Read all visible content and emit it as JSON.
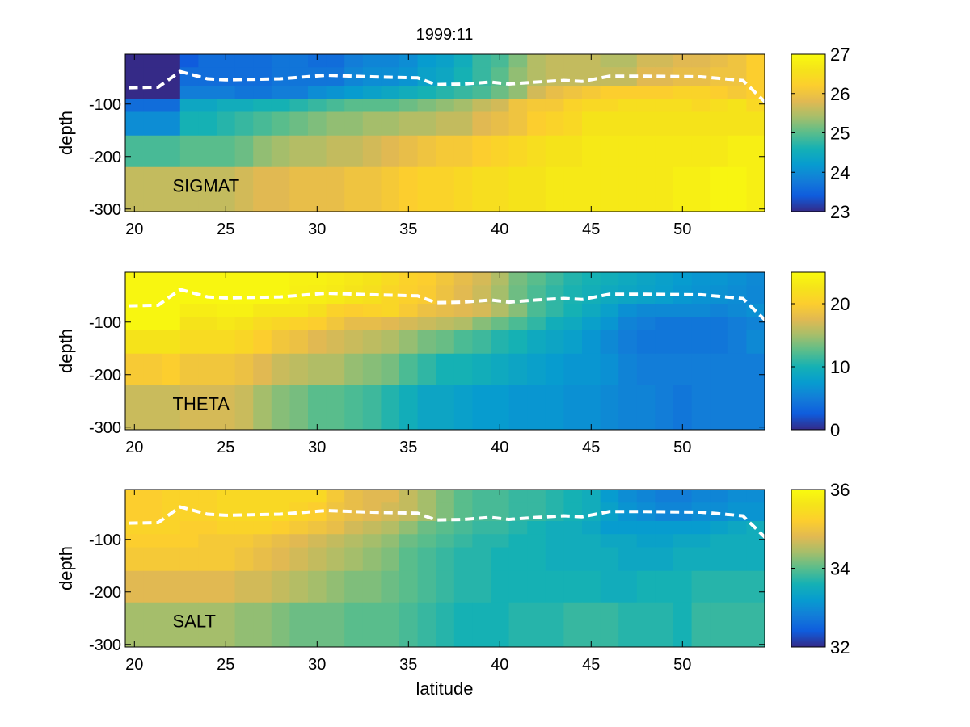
{
  "figure": {
    "title": "1999:11",
    "xlabel": "latitude",
    "colormap": "parula"
  },
  "mixed_layer_depth": {
    "style": "white dashed",
    "lat": [
      19.7,
      21.3,
      22.5,
      24.0,
      25.0,
      28.0,
      30.5,
      33.0,
      35.5,
      36.5,
      38.0,
      39.5,
      40.5,
      42.0,
      43.5,
      44.5,
      46.0,
      48.0,
      51.0,
      53.3,
      54.6
    ],
    "depth": [
      -69,
      -68,
      -38,
      -52,
      -54,
      -52,
      -45,
      -48,
      -50,
      -63,
      -62,
      -58,
      -62,
      -58,
      -55,
      -57,
      -47,
      -47,
      -48,
      -55,
      -99
    ]
  },
  "chart_data": [
    {
      "type": "heatmap",
      "label": "SIGMAT",
      "ylabel": "depth",
      "xlim": [
        19.5,
        54.5
      ],
      "ylim": [
        -305,
        -5
      ],
      "xticks": [
        20,
        25,
        30,
        35,
        40,
        45,
        50
      ],
      "yticks": [
        -100,
        -200,
        -300
      ],
      "clim": [
        23,
        27
      ],
      "colorbar_ticks": [
        23,
        24,
        25,
        26,
        27
      ],
      "lat": [
        20,
        21,
        22,
        23,
        24,
        25,
        26,
        27,
        28,
        29,
        30,
        31,
        32,
        33,
        34,
        35,
        36,
        37,
        38,
        39,
        40,
        41,
        42,
        43,
        44,
        45,
        46,
        47,
        48,
        49,
        50,
        51,
        52,
        53,
        54
      ],
      "depth_edges": [
        -5,
        -30,
        -65,
        -90,
        -115,
        -160,
        -220,
        -305
      ],
      "values": [
        [
          23.0,
          23.0,
          23.0,
          23.4,
          23.6,
          23.6,
          23.6,
          23.6,
          23.7,
          23.7,
          23.6,
          23.6,
          23.8,
          23.9,
          23.9,
          24.0,
          24.2,
          24.3,
          24.5,
          24.8,
          24.9,
          25.2,
          25.5,
          25.6,
          25.6,
          25.6,
          25.5,
          25.5,
          25.7,
          25.7,
          25.8,
          25.8,
          25.9,
          26.0,
          26.2
        ],
        [
          23.0,
          23.0,
          23.0,
          23.6,
          23.6,
          23.6,
          23.6,
          23.6,
          23.7,
          23.7,
          23.7,
          23.7,
          23.9,
          24.0,
          24.0,
          24.1,
          24.3,
          24.4,
          24.6,
          24.8,
          25.0,
          25.3,
          25.5,
          25.6,
          25.6,
          25.6,
          25.6,
          25.6,
          25.8,
          25.8,
          25.9,
          25.9,
          26.0,
          26.0,
          26.2
        ],
        [
          23.0,
          23.0,
          23.0,
          23.8,
          23.8,
          23.8,
          23.7,
          23.7,
          23.8,
          23.8,
          24.0,
          24.1,
          24.2,
          24.3,
          24.4,
          24.5,
          24.6,
          24.7,
          24.8,
          24.9,
          25.1,
          25.3,
          25.7,
          25.9,
          26.0,
          26.1,
          26.2,
          26.2,
          26.2,
          26.2,
          26.3,
          26.3,
          26.2,
          26.1,
          26.2
        ],
        [
          23.6,
          23.6,
          23.6,
          24.4,
          24.4,
          24.5,
          24.5,
          24.6,
          24.6,
          24.7,
          24.8,
          24.9,
          25.0,
          25.0,
          25.0,
          25.1,
          25.2,
          25.3,
          25.4,
          25.6,
          25.7,
          26.0,
          26.1,
          26.1,
          26.3,
          26.4,
          26.4,
          26.5,
          26.5,
          26.5,
          26.5,
          26.4,
          26.5,
          26.6,
          26.4
        ],
        [
          24.0,
          24.0,
          24.0,
          24.6,
          24.6,
          24.7,
          24.8,
          24.9,
          25.0,
          25.1,
          25.2,
          25.3,
          25.3,
          25.4,
          25.4,
          25.5,
          25.5,
          25.6,
          25.6,
          25.8,
          25.9,
          26.0,
          26.2,
          26.3,
          26.4,
          26.6,
          26.6,
          26.6,
          26.6,
          26.6,
          26.6,
          26.6,
          26.6,
          26.6,
          26.6
        ],
        [
          24.9,
          24.9,
          24.9,
          25.0,
          25.0,
          25.0,
          25.1,
          25.3,
          25.4,
          25.5,
          25.5,
          25.6,
          25.6,
          25.7,
          25.8,
          25.9,
          26.0,
          26.1,
          26.1,
          26.2,
          26.3,
          26.4,
          26.5,
          26.6,
          26.6,
          26.7,
          26.7,
          26.7,
          26.7,
          26.7,
          26.7,
          26.7,
          26.7,
          26.8,
          26.8
        ],
        [
          25.6,
          25.6,
          25.6,
          25.6,
          25.6,
          25.6,
          25.7,
          25.8,
          25.8,
          25.9,
          25.9,
          25.9,
          26.0,
          26.0,
          26.1,
          26.2,
          26.3,
          26.3,
          26.4,
          26.5,
          26.5,
          26.6,
          26.6,
          26.7,
          26.7,
          26.7,
          26.7,
          26.7,
          26.7,
          26.7,
          26.8,
          26.8,
          26.9,
          26.9,
          26.8
        ]
      ]
    },
    {
      "type": "heatmap",
      "label": "THETA",
      "ylabel": "depth",
      "xlim": [
        19.5,
        54.5
      ],
      "ylim": [
        -305,
        -5
      ],
      "xticks": [
        20,
        25,
        30,
        35,
        40,
        45,
        50
      ],
      "yticks": [
        -100,
        -200,
        -300
      ],
      "clim": [
        0,
        25
      ],
      "colorbar_ticks": [
        0,
        10,
        20
      ],
      "lat": [
        20,
        21,
        22,
        23,
        24,
        25,
        26,
        27,
        28,
        29,
        30,
        31,
        32,
        33,
        34,
        35,
        36,
        37,
        38,
        39,
        40,
        41,
        42,
        43,
        44,
        45,
        46,
        47,
        48,
        49,
        50,
        51,
        52,
        53,
        54
      ],
      "depth_edges": [
        -5,
        -30,
        -65,
        -90,
        -115,
        -160,
        -220,
        -305
      ],
      "values": [
        [
          24.5,
          24.5,
          24.5,
          24.5,
          24.5,
          24.5,
          24.5,
          24.5,
          24.5,
          24.0,
          24.0,
          23.5,
          23.0,
          22.5,
          21.5,
          20.5,
          20.0,
          19.0,
          18.0,
          17.0,
          15.5,
          13.5,
          12.5,
          11.5,
          10.5,
          10.0,
          9.5,
          9.0,
          8.5,
          8.0,
          7.5,
          7.0,
          7.0,
          6.5,
          6.0
        ],
        [
          24.5,
          24.5,
          24.5,
          24.5,
          24.5,
          24.5,
          24.5,
          24.5,
          24.5,
          23.8,
          23.6,
          23.2,
          22.6,
          22.0,
          21.0,
          20.2,
          19.7,
          18.6,
          17.6,
          16.6,
          15.0,
          13.2,
          12.0,
          11.0,
          10.2,
          9.6,
          9.0,
          8.6,
          8.2,
          7.8,
          7.2,
          6.8,
          6.6,
          6.2,
          5.8
        ],
        [
          24.5,
          24.5,
          24.5,
          23.5,
          23.5,
          24.0,
          24.0,
          23.0,
          23.0,
          23.0,
          22.0,
          20.5,
          20.0,
          20.5,
          21.0,
          19.5,
          18.5,
          18.0,
          17.5,
          17.0,
          15.5,
          14.0,
          12.0,
          11.0,
          10.0,
          9.0,
          8.0,
          6.5,
          6.0,
          6.0,
          6.0,
          6.0,
          5.5,
          6.0,
          6.5
        ],
        [
          24.5,
          24.5,
          24.5,
          22.5,
          22.5,
          23.0,
          22.5,
          21.5,
          21.0,
          20.5,
          20.0,
          19.0,
          18.0,
          18.0,
          17.5,
          17.0,
          16.5,
          16.0,
          15.5,
          14.0,
          13.0,
          12.0,
          11.0,
          9.5,
          9.0,
          8.0,
          7.0,
          5.5,
          5.0,
          4.5,
          4.5,
          4.5,
          4.5,
          5.0,
          5.5
        ],
        [
          22.5,
          22.5,
          22.5,
          21.5,
          21.5,
          21.5,
          21.0,
          20.0,
          19.0,
          18.5,
          17.5,
          17.0,
          16.5,
          16.0,
          15.5,
          14.5,
          13.5,
          13.0,
          12.0,
          11.5,
          10.5,
          10.0,
          9.0,
          8.5,
          8.0,
          7.0,
          6.0,
          5.0,
          4.5,
          4.5,
          4.5,
          4.5,
          4.5,
          5.0,
          6.0
        ],
        [
          19.5,
          19.5,
          20.0,
          19.0,
          19.0,
          19.0,
          18.5,
          17.5,
          16.5,
          16.0,
          15.5,
          15.5,
          14.5,
          14.0,
          13.5,
          12.0,
          11.0,
          10.0,
          10.0,
          9.5,
          9.0,
          8.5,
          8.0,
          7.5,
          7.0,
          7.0,
          6.5,
          5.5,
          5.0,
          5.0,
          5.0,
          5.0,
          5.0,
          5.0,
          5.0
        ],
        [
          16.5,
          16.5,
          16.5,
          17.0,
          17.0,
          17.0,
          16.5,
          15.0,
          14.0,
          13.5,
          12.5,
          12.5,
          12.0,
          11.5,
          10.5,
          9.5,
          8.5,
          8.5,
          8.0,
          7.5,
          7.5,
          7.0,
          7.0,
          7.0,
          6.5,
          6.5,
          6.0,
          5.5,
          5.5,
          5.0,
          4.5,
          5.0,
          5.0,
          5.0,
          5.0
        ]
      ]
    },
    {
      "type": "heatmap",
      "label": "SALT",
      "ylabel": "depth",
      "xlim": [
        19.5,
        54.5
      ],
      "ylim": [
        -305,
        -5
      ],
      "xticks": [
        20,
        25,
        30,
        35,
        40,
        45,
        50
      ],
      "yticks": [
        -100,
        -200,
        -300
      ],
      "clim": [
        32,
        36
      ],
      "colorbar_ticks": [
        32,
        34,
        36
      ],
      "lat": [
        20,
        21,
        22,
        23,
        24,
        25,
        26,
        27,
        28,
        29,
        30,
        31,
        32,
        33,
        34,
        35,
        36,
        37,
        38,
        39,
        40,
        41,
        42,
        43,
        44,
        45,
        46,
        47,
        48,
        49,
        50,
        51,
        52,
        53,
        54
      ],
      "depth_edges": [
        -5,
        -30,
        -65,
        -90,
        -115,
        -160,
        -220,
        -305
      ],
      "values": [
        [
          35.2,
          35.2,
          35.3,
          35.3,
          35.3,
          35.4,
          35.4,
          35.4,
          35.4,
          35.4,
          35.4,
          35.1,
          34.9,
          34.8,
          34.8,
          34.6,
          34.4,
          34.2,
          34.0,
          33.9,
          33.9,
          33.8,
          33.8,
          33.7,
          33.6,
          33.5,
          33.2,
          33.0,
          32.9,
          32.8,
          32.8,
          32.9,
          32.9,
          33.0,
          33.0
        ],
        [
          35.2,
          35.2,
          35.3,
          35.3,
          35.3,
          35.4,
          35.4,
          35.4,
          35.4,
          35.3,
          35.2,
          35.0,
          34.9,
          34.8,
          34.7,
          34.6,
          34.4,
          34.2,
          34.0,
          33.9,
          33.9,
          33.8,
          33.8,
          33.7,
          33.6,
          33.5,
          33.3,
          33.1,
          33.0,
          32.9,
          32.9,
          33.0,
          33.0,
          33.1,
          33.1
        ],
        [
          35.3,
          35.3,
          35.3,
          35.2,
          35.2,
          35.3,
          35.3,
          35.3,
          35.2,
          35.1,
          35.0,
          34.9,
          34.7,
          34.6,
          34.5,
          34.3,
          34.1,
          34.0,
          33.9,
          33.8,
          33.8,
          33.7,
          33.6,
          33.5,
          33.5,
          33.4,
          33.2,
          33.2,
          33.2,
          33.2,
          33.2,
          33.2,
          33.3,
          33.4,
          33.5
        ],
        [
          35.2,
          35.2,
          35.2,
          35.2,
          35.1,
          35.1,
          35.1,
          35.0,
          34.9,
          34.8,
          34.7,
          34.6,
          34.5,
          34.4,
          34.3,
          34.1,
          34.0,
          33.9,
          33.8,
          33.7,
          33.7,
          33.6,
          33.6,
          33.5,
          33.5,
          33.5,
          33.4,
          33.4,
          33.3,
          33.3,
          33.4,
          33.4,
          33.5,
          33.5,
          33.5
        ],
        [
          35.1,
          35.1,
          35.1,
          35.1,
          35.1,
          35.1,
          35.0,
          34.9,
          34.8,
          34.7,
          34.6,
          34.5,
          34.4,
          34.3,
          34.2,
          34.0,
          33.9,
          33.8,
          33.7,
          33.7,
          33.6,
          33.6,
          33.6,
          33.5,
          33.5,
          33.5,
          33.5,
          33.4,
          33.4,
          33.4,
          33.5,
          33.5,
          33.5,
          33.5,
          33.5
        ],
        [
          34.8,
          34.8,
          34.8,
          34.8,
          34.8,
          34.8,
          34.7,
          34.7,
          34.6,
          34.5,
          34.4,
          34.3,
          34.2,
          34.2,
          34.1,
          34.0,
          33.9,
          33.8,
          33.7,
          33.7,
          33.6,
          33.6,
          33.6,
          33.6,
          33.6,
          33.6,
          33.5,
          33.5,
          33.6,
          33.6,
          33.6,
          33.7,
          33.7,
          33.7,
          33.7
        ],
        [
          34.4,
          34.4,
          34.4,
          34.4,
          34.4,
          34.4,
          34.3,
          34.3,
          34.2,
          34.1,
          34.1,
          34.1,
          34.0,
          34.0,
          34.0,
          33.9,
          33.8,
          33.7,
          33.6,
          33.6,
          33.6,
          33.7,
          33.7,
          33.7,
          33.8,
          33.8,
          33.8,
          33.7,
          33.7,
          33.7,
          33.6,
          33.8,
          33.8,
          33.8,
          33.8
        ]
      ]
    }
  ]
}
